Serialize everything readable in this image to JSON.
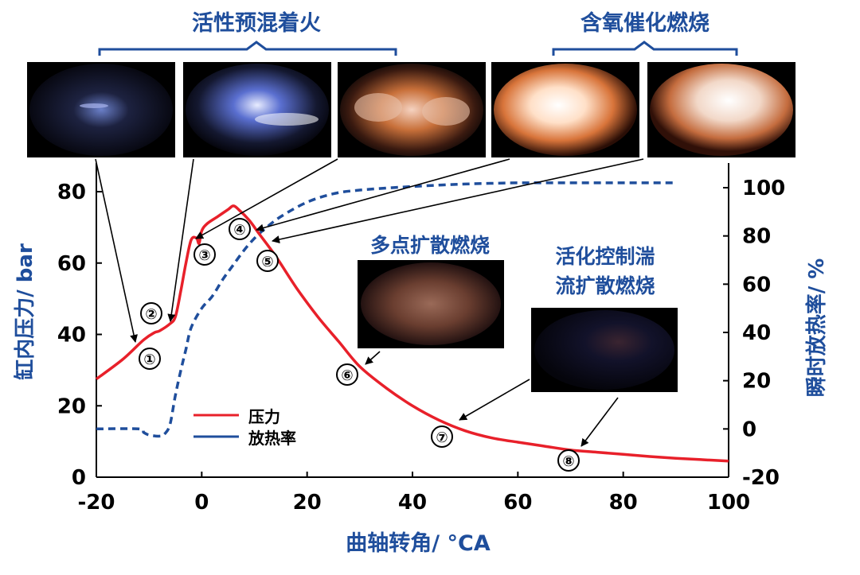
{
  "chart_data": {
    "type": "line",
    "xlabel": "曲轴转角/ °CA",
    "ylabel_left": "缸内压力/ bar",
    "ylabel_right": "瞬时放热率/ %",
    "xlim": [
      -20,
      100
    ],
    "ylim_left": [
      0,
      85
    ],
    "ylim_right": [
      -20,
      105
    ],
    "x_ticks": [
      "-20",
      "0",
      "20",
      "40",
      "60",
      "80",
      "100"
    ],
    "y_left_ticks": [
      "0",
      "20",
      "40",
      "60",
      "80"
    ],
    "y_right_ticks": [
      "-20",
      "0",
      "20",
      "40",
      "60",
      "80",
      "100"
    ],
    "legend": {
      "placement": "lower-left",
      "items": [
        "压力",
        "放热率"
      ]
    },
    "series": [
      {
        "name": "压力",
        "color": "#e8202a",
        "style": "solid",
        "axis": "left",
        "points": [
          [
            -20,
            27.5
          ],
          [
            -15,
            33
          ],
          [
            -11,
            38.5
          ],
          [
            -9,
            40.5
          ],
          [
            -8,
            41
          ],
          [
            -6,
            43
          ],
          [
            -5,
            45
          ],
          [
            -4,
            52
          ],
          [
            -3,
            60
          ],
          [
            -2,
            66.5
          ],
          [
            -1,
            67
          ],
          [
            -0.5,
            65.5
          ],
          [
            0,
            69
          ],
          [
            1,
            71
          ],
          [
            3,
            73
          ],
          [
            5,
            75
          ],
          [
            6,
            76
          ],
          [
            7,
            75
          ],
          [
            9,
            72
          ],
          [
            11,
            68
          ],
          [
            14,
            62
          ],
          [
            18,
            53
          ],
          [
            22,
            45
          ],
          [
            26,
            38
          ],
          [
            30,
            31
          ],
          [
            35,
            25
          ],
          [
            40,
            20
          ],
          [
            45,
            16
          ],
          [
            50,
            13
          ],
          [
            55,
            11
          ],
          [
            60,
            9.8
          ],
          [
            65,
            8.7
          ],
          [
            70,
            7.6
          ],
          [
            75,
            7
          ],
          [
            80,
            6.4
          ],
          [
            85,
            5.8
          ],
          [
            90,
            5.3
          ],
          [
            95,
            4.9
          ],
          [
            100,
            4.5
          ]
        ]
      },
      {
        "name": "放热率",
        "color": "#1f4e9c",
        "style": "dashed",
        "axis": "right",
        "points": [
          [
            -20,
            0
          ],
          [
            -12,
            0
          ],
          [
            -11,
            -1.5
          ],
          [
            -10,
            -2.5
          ],
          [
            -8,
            -3
          ],
          [
            -7,
            -2
          ],
          [
            -6,
            2
          ],
          [
            -5,
            14
          ],
          [
            -4,
            24
          ],
          [
            -3,
            33
          ],
          [
            -2,
            42
          ],
          [
            0,
            50
          ],
          [
            2,
            55
          ],
          [
            4,
            62
          ],
          [
            6,
            68
          ],
          [
            8,
            74
          ],
          [
            10,
            79
          ],
          [
            12,
            83
          ],
          [
            15,
            88
          ],
          [
            20,
            94
          ],
          [
            25,
            97.5
          ],
          [
            30,
            99
          ],
          [
            40,
            100.5
          ],
          [
            50,
            101.5
          ],
          [
            60,
            102
          ],
          [
            70,
            102
          ],
          [
            80,
            102
          ],
          [
            90,
            102
          ]
        ]
      }
    ],
    "point_markers": [
      {
        "label": "①",
        "x": -10,
        "y": 41
      },
      {
        "label": "②",
        "x": -6.5,
        "y": 43
      },
      {
        "label": "③",
        "x": -1.5,
        "y": 67
      },
      {
        "label": "④",
        "x": 7,
        "y": 75
      },
      {
        "label": "⑤",
        "x": 12,
        "y": 66
      },
      {
        "label": "⑥",
        "x": 32,
        "y": 28
      },
      {
        "label": "⑦",
        "x": 49,
        "y": 14.5
      },
      {
        "label": "⑧",
        "x": 71,
        "y": 7.6
      }
    ]
  },
  "top_groups": {
    "left_label": "活性预混着火",
    "right_label": "含氧催化燃烧"
  },
  "inset_labels": {
    "middle": "多点扩散燃烧",
    "right_line1": "活化控制湍",
    "right_line2": "流扩散燃烧"
  },
  "colors": {
    "pressure": "#e8202a",
    "heat_release": "#1f4e9c",
    "title_blue": "#1f4e9c"
  }
}
